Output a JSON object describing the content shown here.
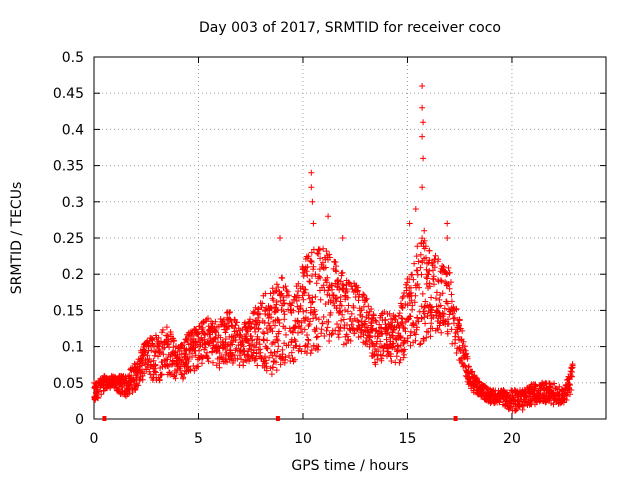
{
  "chart_data": {
    "type": "scatter",
    "title": "Day 003 of 2017, SRMTID for receiver coco",
    "xlabel": "GPS time / hours",
    "ylabel": "SRMTID / TECUs",
    "xlim": [
      0,
      24.5
    ],
    "ylim": [
      0,
      0.5
    ],
    "xticks": [
      "0",
      "5",
      "10",
      "15",
      "20"
    ],
    "xtick_values": [
      0,
      5,
      10,
      15,
      20
    ],
    "yticks": [
      "0",
      "0.05",
      "0.1",
      "0.15",
      "0.2",
      "0.25",
      "0.3",
      "0.35",
      "0.4",
      "0.45",
      "0.5"
    ],
    "ytick_values": [
      0,
      0.05,
      0.1,
      0.15,
      0.2,
      0.25,
      0.3,
      0.35,
      0.4,
      0.45,
      0.5
    ],
    "grid": true,
    "marker": "+",
    "color": "#ff0000",
    "series": [
      {
        "name": "SRMTID",
        "envelope_hours": [
          0,
          0.5,
          1.0,
          1.5,
          2.0,
          2.5,
          3.0,
          3.5,
          4.0,
          4.5,
          5.0,
          5.5,
          6.0,
          6.5,
          7.0,
          7.5,
          8.0,
          8.5,
          9.0,
          9.5,
          10.0,
          10.5,
          11.0,
          11.5,
          12.0,
          12.5,
          13.0,
          13.5,
          14.0,
          14.5,
          15.0,
          15.5,
          16.0,
          16.5,
          17.0,
          17.5,
          18.0,
          18.5,
          19.0,
          19.5,
          20.0,
          20.5,
          21.0,
          21.5,
          22.0,
          22.5,
          22.9
        ],
        "envelope_low": [
          0.02,
          0.04,
          0.04,
          0.03,
          0.04,
          0.06,
          0.05,
          0.06,
          0.05,
          0.06,
          0.07,
          0.08,
          0.07,
          0.08,
          0.07,
          0.08,
          0.07,
          0.06,
          0.07,
          0.07,
          0.08,
          0.09,
          0.1,
          0.11,
          0.1,
          0.11,
          0.1,
          0.07,
          0.08,
          0.07,
          0.09,
          0.1,
          0.11,
          0.12,
          0.11,
          0.08,
          0.04,
          0.03,
          0.02,
          0.02,
          0.01,
          0.01,
          0.02,
          0.02,
          0.02,
          0.02,
          0.04
        ],
        "envelope_high": [
          0.05,
          0.06,
          0.06,
          0.06,
          0.08,
          0.11,
          0.12,
          0.13,
          0.1,
          0.12,
          0.13,
          0.14,
          0.14,
          0.15,
          0.13,
          0.14,
          0.17,
          0.18,
          0.2,
          0.16,
          0.22,
          0.24,
          0.24,
          0.22,
          0.2,
          0.19,
          0.17,
          0.14,
          0.15,
          0.14,
          0.2,
          0.26,
          0.24,
          0.22,
          0.21,
          0.14,
          0.07,
          0.05,
          0.04,
          0.04,
          0.04,
          0.04,
          0.05,
          0.05,
          0.05,
          0.04,
          0.08
        ],
        "outliers": [
          {
            "x": 8.9,
            "y": 0.25
          },
          {
            "x": 10.4,
            "y": 0.34
          },
          {
            "x": 10.4,
            "y": 0.32
          },
          {
            "x": 10.45,
            "y": 0.3
          },
          {
            "x": 10.5,
            "y": 0.27
          },
          {
            "x": 11.2,
            "y": 0.28
          },
          {
            "x": 11.9,
            "y": 0.25
          },
          {
            "x": 15.1,
            "y": 0.27
          },
          {
            "x": 15.4,
            "y": 0.29
          },
          {
            "x": 15.7,
            "y": 0.46
          },
          {
            "x": 15.7,
            "y": 0.43
          },
          {
            "x": 15.75,
            "y": 0.41
          },
          {
            "x": 15.7,
            "y": 0.39
          },
          {
            "x": 15.75,
            "y": 0.36
          },
          {
            "x": 15.7,
            "y": 0.32
          },
          {
            "x": 15.8,
            "y": 0.26
          },
          {
            "x": 16.9,
            "y": 0.27
          },
          {
            "x": 16.9,
            "y": 0.25
          }
        ],
        "zero_marks_hours": [
          0.5,
          8.8,
          17.3
        ]
      }
    ]
  }
}
